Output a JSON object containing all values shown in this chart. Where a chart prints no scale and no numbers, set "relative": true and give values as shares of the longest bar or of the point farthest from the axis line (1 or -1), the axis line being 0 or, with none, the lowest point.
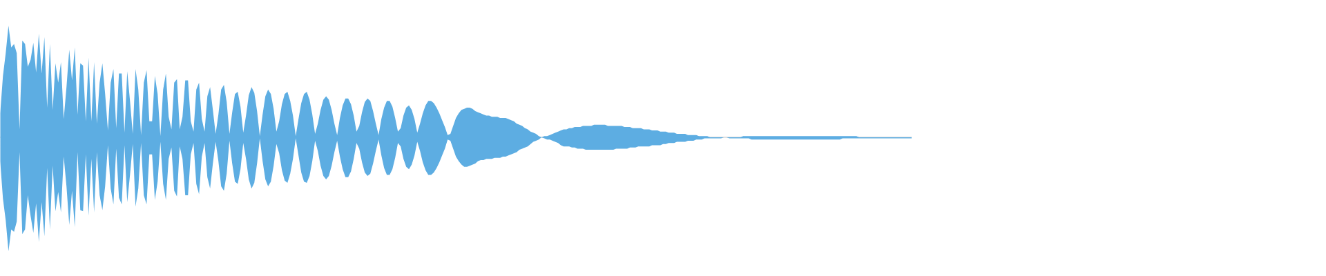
{
  "chart_data": {
    "type": "area",
    "relative": true,
    "categories": [
      null,
      null,
      null,
      null,
      null,
      null,
      null,
      null,
      null,
      null,
      null,
      null,
      null,
      null,
      null,
      null,
      null,
      null,
      null,
      null,
      null,
      null,
      null,
      null,
      null,
      null,
      null,
      null,
      null,
      null,
      null,
      null,
      null,
      null,
      null,
      null,
      null,
      null,
      null,
      null,
      null,
      null,
      null,
      null,
      null,
      null,
      null,
      null,
      null,
      null,
      null,
      null,
      null,
      null,
      null,
      null,
      null,
      null,
      null,
      null,
      null,
      null,
      null,
      null,
      null,
      null,
      null,
      null,
      null,
      null,
      null,
      null,
      null,
      null,
      null,
      null,
      null,
      null,
      null,
      null,
      null,
      null,
      null,
      null,
      null,
      null,
      null,
      null,
      null,
      null,
      null,
      null,
      null,
      null,
      null,
      null,
      null,
      null,
      null,
      null,
      null,
      null,
      null,
      null,
      null,
      null,
      null,
      null,
      null,
      null,
      null,
      null,
      null,
      null,
      null,
      null,
      null,
      null,
      null,
      null,
      null,
      null,
      null,
      null,
      null,
      null,
      null,
      null,
      null,
      null,
      null,
      null,
      null,
      null,
      null,
      null,
      null,
      null,
      null,
      null,
      null,
      null,
      null,
      null,
      null,
      null,
      null,
      null,
      null,
      null,
      null,
      null,
      null,
      null,
      null,
      null,
      null,
      null,
      null,
      null,
      null,
      null,
      null,
      null,
      null,
      null,
      null,
      null,
      null,
      null,
      null,
      null,
      null,
      null,
      null,
      null,
      null,
      null,
      null,
      null,
      null,
      null,
      null,
      null,
      null,
      null,
      null,
      null,
      null,
      null,
      null,
      null,
      null,
      null,
      null,
      null,
      null,
      null,
      null,
      null,
      null,
      null,
      null,
      null,
      null,
      null,
      null,
      null,
      null,
      null,
      null,
      null,
      null,
      null,
      null,
      null,
      null,
      null,
      null,
      null,
      null,
      null,
      null,
      null,
      null,
      null,
      null,
      null,
      null,
      null,
      null,
      null,
      null,
      null,
      null,
      null,
      null,
      null,
      null,
      null,
      null,
      null,
      null,
      null,
      null,
      null,
      null,
      null,
      null,
      null,
      null,
      null,
      null,
      null,
      null,
      null,
      null,
      null,
      null,
      null,
      null,
      null,
      null,
      null,
      null,
      null,
      null,
      null,
      null,
      null,
      null,
      null,
      null,
      null,
      null,
      null,
      null,
      null,
      null,
      null,
      null,
      null,
      null,
      null,
      null,
      null,
      null,
      null,
      null,
      null,
      null,
      null,
      null,
      null,
      null,
      null,
      null,
      null,
      null,
      null,
      null,
      null,
      null,
      null,
      null,
      null,
      null,
      null,
      null,
      null,
      null,
      null,
      null,
      null,
      null,
      null,
      null,
      null,
      null,
      null,
      null,
      null,
      null,
      null,
      null,
      null,
      null,
      null,
      null,
      null,
      null
    ],
    "series": [
      {
        "color": "#5dade2",
        "values": [
          0.21,
          0.54,
          0.74,
          0.98,
          0.79,
          0.82,
          0.74,
          0.07,
          0.85,
          0.82,
          0.62,
          0.68,
          0.83,
          0.57,
          0.91,
          0.56,
          0.88,
          0.26,
          0.82,
          0.24,
          0.65,
          0.48,
          0.66,
          0.16,
          0.44,
          0.77,
          0.5,
          0.79,
          0.2,
          0.65,
          0.63,
          0.14,
          0.7,
          0.14,
          0.66,
          0.12,
          0.48,
          0.65,
          0.38,
          0.06,
          0.48,
          0.6,
          0.08,
          0.56,
          0.56,
          0.04,
          0.58,
          0.32,
          0.03,
          0.6,
          0.42,
          0.02,
          0.48,
          0.59,
          0.14,
          0.14,
          0.54,
          0.38,
          0.01,
          0.42,
          0.56,
          0.18,
          0.07,
          0.48,
          0.51,
          0.07,
          0.18,
          0.5,
          0.5,
          0.14,
          0.05,
          0.42,
          0.48,
          0.16,
          0.05,
          0.36,
          0.44,
          0.24,
          0.03,
          0.2,
          0.42,
          0.46,
          0.31,
          0.03,
          0.22,
          0.38,
          0.4,
          0.27,
          0.04,
          0.19,
          0.37,
          0.44,
          0.39,
          0.23,
          0.01,
          0.2,
          0.36,
          0.42,
          0.38,
          0.25,
          0.05,
          0.14,
          0.29,
          0.38,
          0.4,
          0.32,
          0.19,
          0.01,
          0.16,
          0.3,
          0.38,
          0.4,
          0.33,
          0.2,
          0.03,
          0.12,
          0.24,
          0.33,
          0.36,
          0.33,
          0.24,
          0.12,
          0.02,
          0.17,
          0.28,
          0.34,
          0.34,
          0.29,
          0.19,
          0.05,
          0.1,
          0.22,
          0.31,
          0.34,
          0.32,
          0.23,
          0.12,
          0.02,
          0.16,
          0.26,
          0.32,
          0.32,
          0.27,
          0.17,
          0.05,
          0.08,
          0.19,
          0.26,
          0.28,
          0.24,
          0.16,
          0.04,
          0.12,
          0.21,
          0.28,
          0.32,
          0.32,
          0.3,
          0.26,
          0.21,
          0.15,
          0.09,
          0.02,
          0.03,
          0.1,
          0.17,
          0.21,
          0.24,
          0.25,
          0.26,
          0.26,
          0.25,
          0.23,
          0.22,
          0.21,
          0.2,
          0.19,
          0.19,
          0.18,
          0.18,
          0.18,
          0.17,
          0.17,
          0.17,
          0.16,
          0.15,
          0.14,
          0.12,
          0.11,
          0.1,
          0.08,
          0.07,
          0.05,
          0.04,
          0.03,
          0.01,
          0,
          0.01,
          0.01,
          0.02,
          0.03,
          0.04,
          0.05,
          0.06,
          0.07,
          0.07,
          0.08,
          0.08,
          0.09,
          0.09,
          0.09,
          0.1,
          0.1,
          0.1,
          0.1,
          0.11,
          0.11,
          0.11,
          0.11,
          0.11,
          0.1,
          0.1,
          0.1,
          0.1,
          0.1,
          0.1,
          0.09,
          0.09,
          0.09,
          0.08,
          0.08,
          0.08,
          0.08,
          0.07,
          0.07,
          0.07,
          0.06,
          0.06,
          0.06,
          0.05,
          0.05,
          0.05,
          0.04,
          0.04,
          0.04,
          0.03,
          0.03,
          0.03,
          0.03,
          0.02,
          0.02,
          0.02,
          0.02,
          0.01,
          0.01,
          0.01,
          0.01,
          0,
          0,
          0,
          0,
          0,
          0,
          0,
          0,
          0,
          0,
          0,
          0,
          0.01,
          0.01,
          0.01,
          0.01,
          0.01,
          0.01,
          0.01,
          0.01,
          0.01,
          0.01,
          0.01,
          0.01,
          0.01,
          0.01,
          0.01,
          0.01,
          0.01,
          0.01,
          0.01,
          0.01,
          0.01,
          0.01,
          0.01,
          0.01,
          0.01,
          0.01,
          0.01,
          0.01,
          0.01,
          0.01,
          0.01,
          0.01,
          0.01,
          0.01,
          0.01,
          0.01,
          0.01,
          0.01,
          0.01,
          0.01,
          0.01,
          0.01,
          0,
          0,
          0,
          0,
          0,
          0,
          0,
          0,
          0,
          0,
          0,
          0,
          0,
          0,
          0,
          0,
          0,
          0,
          0,
          0
        ]
      },
      {
        "color": "#5dade2",
        "values": [
          -0.21,
          -0.54,
          -0.73,
          -1.0,
          -0.81,
          -0.83,
          -0.74,
          -0.13,
          -0.85,
          -0.81,
          -0.51,
          -0.69,
          -0.84,
          -0.58,
          -0.92,
          -0.57,
          -0.87,
          -0.27,
          -0.81,
          -0.25,
          -0.65,
          -0.48,
          -0.66,
          -0.17,
          -0.43,
          -0.77,
          -0.47,
          -0.79,
          -0.13,
          -0.64,
          -0.65,
          -0.15,
          -0.69,
          -0.19,
          -0.66,
          -0.13,
          -0.51,
          -0.64,
          -0.43,
          -0.07,
          -0.45,
          -0.59,
          -0.1,
          -0.53,
          -0.59,
          -0.07,
          -0.57,
          -0.33,
          -0.06,
          -0.61,
          -0.45,
          -0.05,
          -0.51,
          -0.59,
          -0.15,
          -0.15,
          -0.55,
          -0.39,
          -0.04,
          -0.41,
          -0.55,
          -0.19,
          -0.09,
          -0.47,
          -0.52,
          -0.08,
          -0.19,
          -0.51,
          -0.51,
          -0.15,
          -0.05,
          -0.41,
          -0.5,
          -0.17,
          -0.05,
          -0.35,
          -0.45,
          -0.23,
          -0.04,
          -0.21,
          -0.43,
          -0.47,
          -0.32,
          -0.03,
          -0.23,
          -0.39,
          -0.41,
          -0.28,
          -0.05,
          -0.19,
          -0.37,
          -0.45,
          -0.4,
          -0.23,
          -0.01,
          -0.21,
          -0.37,
          -0.43,
          -0.39,
          -0.25,
          -0.06,
          -0.14,
          -0.29,
          -0.38,
          -0.4,
          -0.32,
          -0.19,
          -0.01,
          -0.16,
          -0.31,
          -0.39,
          -0.4,
          -0.34,
          -0.21,
          -0.03,
          -0.12,
          -0.25,
          -0.34,
          -0.37,
          -0.34,
          -0.25,
          -0.13,
          -0.03,
          -0.17,
          -0.28,
          -0.35,
          -0.35,
          -0.3,
          -0.19,
          -0.05,
          -0.1,
          -0.22,
          -0.31,
          -0.34,
          -0.32,
          -0.23,
          -0.12,
          -0.02,
          -0.16,
          -0.27,
          -0.33,
          -0.33,
          -0.28,
          -0.18,
          -0.05,
          -0.08,
          -0.19,
          -0.26,
          -0.28,
          -0.24,
          -0.16,
          -0.04,
          -0.12,
          -0.22,
          -0.29,
          -0.33,
          -0.33,
          -0.31,
          -0.27,
          -0.22,
          -0.16,
          -0.1,
          -0.02,
          -0.03,
          -0.1,
          -0.17,
          -0.21,
          -0.24,
          -0.26,
          -0.26,
          -0.25,
          -0.24,
          -0.23,
          -0.21,
          -0.2,
          -0.2,
          -0.19,
          -0.19,
          -0.19,
          -0.18,
          -0.18,
          -0.18,
          -0.17,
          -0.17,
          -0.16,
          -0.15,
          -0.14,
          -0.13,
          -0.11,
          -0.1,
          -0.09,
          -0.08,
          -0.06,
          -0.04,
          -0.03,
          -0.02,
          0,
          -0.01,
          -0.02,
          -0.02,
          -0.03,
          -0.04,
          -0.05,
          -0.07,
          -0.08,
          -0.08,
          -0.08,
          -0.09,
          -0.09,
          -0.1,
          -0.1,
          -0.1,
          -0.11,
          -0.11,
          -0.11,
          -0.11,
          -0.11,
          -0.11,
          -0.11,
          -0.11,
          -0.11,
          -0.11,
          -0.11,
          -0.1,
          -0.1,
          -0.1,
          -0.1,
          -0.1,
          -0.09,
          -0.09,
          -0.09,
          -0.08,
          -0.08,
          -0.08,
          -0.08,
          -0.08,
          -0.07,
          -0.07,
          -0.07,
          -0.07,
          -0.06,
          -0.06,
          -0.05,
          -0.05,
          -0.05,
          -0.04,
          -0.04,
          -0.04,
          -0.04,
          -0.03,
          -0.03,
          -0.03,
          -0.02,
          -0.02,
          -0.02,
          -0.01,
          -0.01,
          -0.01,
          -0.01,
          -0.01,
          -0.01,
          -0.01,
          0,
          0,
          -0.01,
          -0.01,
          -0.01,
          -0.01,
          -0.01,
          -0.01,
          -0.01,
          -0.01,
          -0.02,
          -0.02,
          -0.02,
          -0.02,
          -0.02,
          -0.02,
          -0.02,
          -0.02,
          -0.02,
          -0.02,
          -0.02,
          -0.02,
          -0.02,
          -0.02,
          -0.02,
          -0.02,
          -0.02,
          -0.02,
          -0.02,
          -0.02,
          -0.02,
          -0.02,
          -0.02,
          -0.02,
          -0.02,
          -0.02,
          -0.02,
          -0.02,
          -0.02,
          -0.02,
          -0.02,
          -0.02,
          -0.02,
          -0.01,
          -0.01,
          -0.01,
          -0.01,
          -0.01,
          -0.01,
          -0.01,
          -0.01,
          -0.01,
          -0.01,
          -0.01,
          -0.01,
          -0.01,
          -0.01,
          -0.01,
          -0.01,
          -0.01,
          -0.01,
          -0.01,
          -0.01,
          -0.01,
          -0.01,
          -0.01,
          -0.01,
          -0.01,
          -0.01
        ]
      }
    ]
  }
}
